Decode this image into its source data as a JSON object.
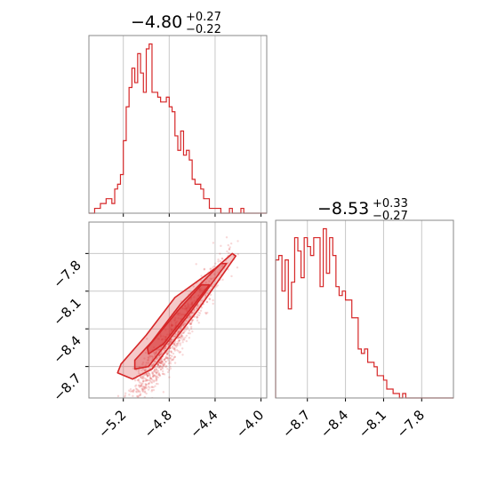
{
  "colors": {
    "series": "#d62728",
    "grid": "#c8c8c8",
    "frame": "#888888",
    "background": "#ffffff"
  },
  "chart_data": [
    {
      "type": "histogram",
      "name_hint": "marginal-x",
      "title": {
        "median": "−4.80",
        "plus": "+0.27",
        "minus": "−0.22"
      },
      "xlim": [
        -5.5,
        -3.95
      ],
      "grid": true,
      "x_ticks": [
        -5.2,
        -4.8,
        -4.4,
        -4.0
      ],
      "bins": {
        "start": -5.5,
        "width": 0.025,
        "counts": [
          0,
          0,
          1,
          1,
          2,
          2,
          3,
          3,
          2,
          5,
          6,
          8,
          15,
          22,
          26,
          30,
          27,
          33,
          29,
          25,
          34,
          35,
          25,
          25,
          24,
          23,
          23,
          24,
          22,
          21,
          16,
          13,
          17,
          12,
          13,
          11,
          7,
          6,
          6,
          5,
          3,
          3,
          1,
          1,
          1,
          1,
          0,
          0,
          0,
          1,
          0,
          0,
          0,
          1,
          0,
          0,
          0,
          0,
          0,
          0,
          0,
          0
        ]
      }
    },
    {
      "type": "histogram",
      "name_hint": "marginal-y",
      "title": {
        "median": "−8.53",
        "plus": "+0.33",
        "minus": "−0.27"
      },
      "xlim": [
        -8.95,
        -7.55
      ],
      "grid": true,
      "x_ticks": [
        -8.7,
        -8.4,
        -8.1,
        -7.8
      ],
      "x_tick_labels": [
        "−8.7",
        "−8.4",
        "−8.1",
        "−7.8"
      ],
      "bins": {
        "start": -8.95,
        "width": 0.025,
        "counts": [
          31,
          32,
          24,
          31,
          20,
          26,
          36,
          33,
          27,
          36,
          34,
          32,
          36,
          36,
          25,
          38,
          28,
          36,
          32,
          25,
          23,
          24,
          22,
          22,
          18,
          18,
          11,
          10,
          11,
          8,
          8,
          7,
          5,
          5,
          4,
          2,
          2,
          1,
          1,
          0,
          1,
          0,
          0,
          0,
          0,
          0,
          0,
          0,
          0,
          0,
          0,
          0,
          0,
          0,
          0,
          0
        ]
      }
    },
    {
      "type": "scatter",
      "name_hint": "joint-density",
      "xlim": [
        -5.5,
        -3.95
      ],
      "ylim": [
        -8.95,
        -7.55
      ],
      "grid": true,
      "x_ticks": [
        -5.2,
        -4.8,
        -4.4,
        -4.0
      ],
      "x_tick_labels": [
        "−5.2",
        "−4.8",
        "−4.4",
        "−4.0"
      ],
      "y_ticks": [
        -7.8,
        -8.1,
        -8.4,
        -8.7
      ],
      "y_tick_labels": [
        "−7.8",
        "−8.1",
        "−8.4",
        "−8.7"
      ],
      "relation": {
        "slope": 1.35,
        "intercept": -2.05,
        "sigma_y": 0.09
      },
      "sample_count": 1000,
      "contours": [
        {
          "level": "outer",
          "points": [
            [
              -5.25,
              -8.75
            ],
            [
              -5.12,
              -8.8
            ],
            [
              -4.95,
              -8.72
            ],
            [
              -4.55,
              -8.25
            ],
            [
              -4.22,
              -7.82
            ],
            [
              -4.25,
              -7.8
            ],
            [
              -4.4,
              -7.92
            ],
            [
              -4.75,
              -8.15
            ],
            [
              -5.0,
              -8.45
            ],
            [
              -5.22,
              -8.68
            ]
          ]
        },
        {
          "level": "middle",
          "points": [
            [
              -5.1,
              -8.72
            ],
            [
              -4.98,
              -8.7
            ],
            [
              -4.6,
              -8.25
            ],
            [
              -4.3,
              -7.88
            ],
            [
              -4.35,
              -7.88
            ],
            [
              -4.7,
              -8.2
            ],
            [
              -4.95,
              -8.5
            ],
            [
              -5.1,
              -8.65
            ]
          ]
        },
        {
          "level": "inner",
          "points": [
            [
              -4.98,
              -8.6
            ],
            [
              -4.85,
              -8.52
            ],
            [
              -4.62,
              -8.25
            ],
            [
              -4.45,
              -8.05
            ],
            [
              -4.52,
              -8.05
            ],
            [
              -4.72,
              -8.25
            ],
            [
              -4.9,
              -8.45
            ],
            [
              -4.99,
              -8.55
            ]
          ]
        }
      ]
    }
  ]
}
